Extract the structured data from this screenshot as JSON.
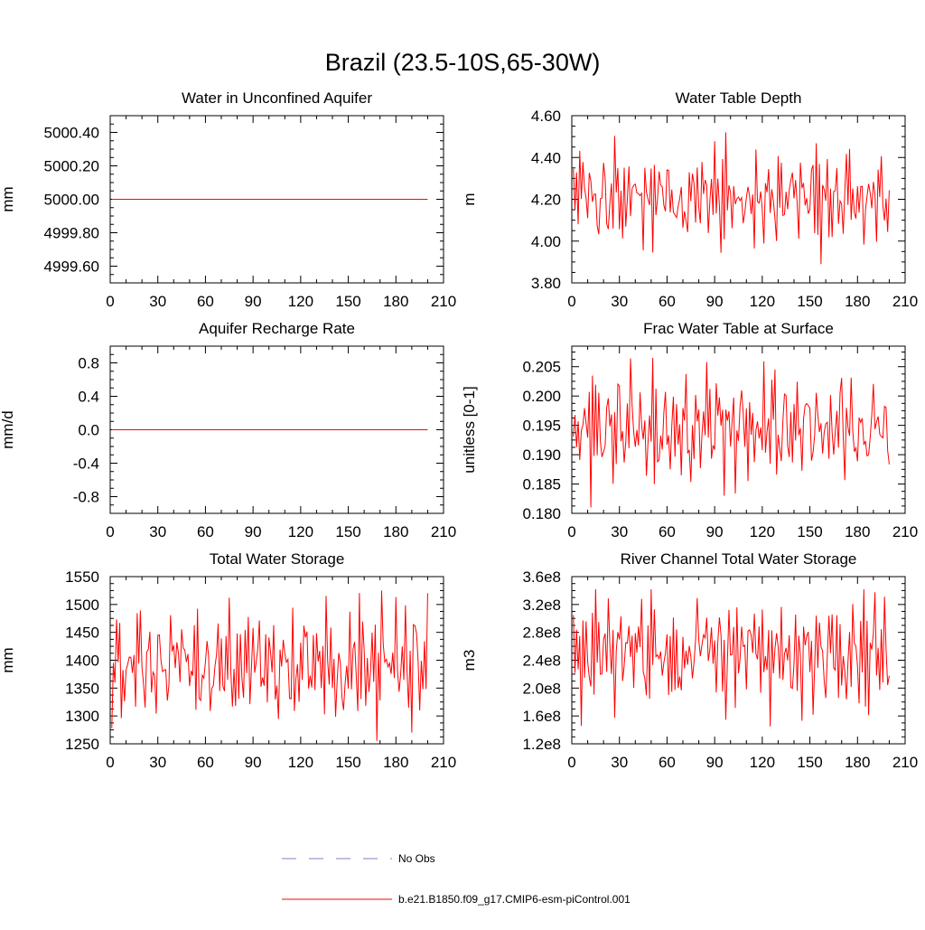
{
  "figure": {
    "title": "Brazil (23.5-10S,65-30W)",
    "colors": {
      "series": "#ff0000",
      "obs": "#8080c0",
      "axis": "#000000"
    }
  },
  "legend": {
    "items": [
      {
        "label": "No Obs",
        "style": "dashed",
        "color": "#8080c0"
      },
      {
        "label": "b.e21.B1850.f09_g17.CMIP6-esm-piControl.001",
        "style": "solid",
        "color": "#ff0000"
      }
    ]
  },
  "chart_data": [
    {
      "type": "line",
      "title": "Water in Unconfined Aquifer",
      "xlabel": "",
      "ylabel": "mm",
      "xlim": [
        0,
        210
      ],
      "ylim": [
        4999.5,
        5000.5
      ],
      "xticks": [
        "0",
        "30",
        "60",
        "90",
        "120",
        "150",
        "180",
        "210"
      ],
      "yticks": [
        {
          "value": 4999.6,
          "label": "4999.60"
        },
        {
          "value": 4999.8,
          "label": "4999.80"
        },
        {
          "value": 5000.0,
          "label": "5000.00"
        },
        {
          "value": 5000.2,
          "label": "5000.20"
        },
        {
          "value": 5000.4,
          "label": "5000.40"
        }
      ],
      "series": [
        {
          "name": "b.e21.B1850.f09_g17.CMIP6-esm-piControl.001",
          "x_start": 1,
          "x_end": 200,
          "constant": 5000.0
        }
      ]
    },
    {
      "type": "line",
      "title": "Water Table Depth",
      "xlabel": "",
      "ylabel": "m",
      "xlim": [
        0,
        210
      ],
      "ylim": [
        3.8,
        4.6
      ],
      "xticks": [
        "0",
        "30",
        "60",
        "90",
        "120",
        "150",
        "180",
        "210"
      ],
      "yticks": [
        {
          "value": 3.8,
          "label": "3.80"
        },
        {
          "value": 4.0,
          "label": "4.00"
        },
        {
          "value": 4.2,
          "label": "4.20"
        },
        {
          "value": 4.4,
          "label": "4.40"
        },
        {
          "value": 4.6,
          "label": "4.60"
        }
      ],
      "series": [
        {
          "name": "b.e21.B1850.f09_g17.CMIP6-esm-piControl.001",
          "x_start": 1,
          "x_end": 200,
          "min": 3.89,
          "max": 4.52,
          "wave_seed": 3
        }
      ]
    },
    {
      "type": "line",
      "title": "Aquifer Recharge Rate",
      "xlabel": "",
      "ylabel": "mm/d",
      "xlim": [
        0,
        210
      ],
      "ylim": [
        -1.0,
        1.0
      ],
      "xticks": [
        "0",
        "30",
        "60",
        "90",
        "120",
        "150",
        "180",
        "210"
      ],
      "yticks": [
        {
          "value": -0.8,
          "label": "-0.8"
        },
        {
          "value": -0.4,
          "label": "-0.4"
        },
        {
          "value": 0.0,
          "label": "0.0"
        },
        {
          "value": 0.4,
          "label": "0.4"
        },
        {
          "value": 0.8,
          "label": "0.8"
        }
      ],
      "series": [
        {
          "name": "b.e21.B1850.f09_g17.CMIP6-esm-piControl.001",
          "x_start": 1,
          "x_end": 200,
          "constant": 0.0
        }
      ]
    },
    {
      "type": "line",
      "title": "Frac Water Table at Surface",
      "xlabel": "",
      "ylabel": "unitless [0-1]",
      "xlim": [
        0,
        210
      ],
      "ylim": [
        0.18,
        0.2085
      ],
      "xticks": [
        "0",
        "30",
        "60",
        "90",
        "120",
        "150",
        "180",
        "210"
      ],
      "yticks": [
        {
          "value": 0.18,
          "label": "0.180"
        },
        {
          "value": 0.185,
          "label": "0.185"
        },
        {
          "value": 0.19,
          "label": "0.190"
        },
        {
          "value": 0.195,
          "label": "0.195"
        },
        {
          "value": 0.2,
          "label": "0.200"
        },
        {
          "value": 0.205,
          "label": "0.205"
        }
      ],
      "series": [
        {
          "name": "b.e21.B1850.f09_g17.CMIP6-esm-piControl.001",
          "x_start": 1,
          "x_end": 200,
          "min": 0.181,
          "max": 0.2065,
          "wave_seed": 7
        }
      ]
    },
    {
      "type": "line",
      "title": "Total Water Storage",
      "xlabel": "",
      "ylabel": "mm",
      "xlim": [
        0,
        210
      ],
      "ylim": [
        1250,
        1550
      ],
      "xticks": [
        "0",
        "30",
        "60",
        "90",
        "120",
        "150",
        "180",
        "210"
      ],
      "yticks": [
        {
          "value": 1250,
          "label": "1250"
        },
        {
          "value": 1300,
          "label": "1300"
        },
        {
          "value": 1350,
          "label": "1350"
        },
        {
          "value": 1400,
          "label": "1400"
        },
        {
          "value": 1450,
          "label": "1450"
        },
        {
          "value": 1500,
          "label": "1500"
        },
        {
          "value": 1550,
          "label": "1550"
        }
      ],
      "series": [
        {
          "name": "b.e21.B1850.f09_g17.CMIP6-esm-piControl.001",
          "x_start": 1,
          "x_end": 200,
          "min": 1255,
          "max": 1525,
          "wave_seed": 11
        }
      ]
    },
    {
      "type": "line",
      "title": "River Channel Total Water Storage",
      "xlabel": "",
      "ylabel": "m3",
      "xlim": [
        0,
        210
      ],
      "ylim": [
        120000000,
        360000000
      ],
      "xticks": [
        "0",
        "30",
        "60",
        "90",
        "120",
        "150",
        "180",
        "210"
      ],
      "yticks": [
        {
          "value": 120000000,
          "label": "1.2e8"
        },
        {
          "value": 160000000,
          "label": "1.6e8"
        },
        {
          "value": 200000000,
          "label": "2.0e8"
        },
        {
          "value": 240000000,
          "label": "2.4e8"
        },
        {
          "value": 280000000,
          "label": "2.8e8"
        },
        {
          "value": 320000000,
          "label": "3.2e8"
        },
        {
          "value": 360000000,
          "label": "3.6e8"
        }
      ],
      "series": [
        {
          "name": "b.e21.B1850.f09_g17.CMIP6-esm-piControl.001",
          "x_start": 1,
          "x_end": 200,
          "min": 145000000,
          "max": 342000000,
          "wave_seed": 13
        }
      ]
    }
  ]
}
